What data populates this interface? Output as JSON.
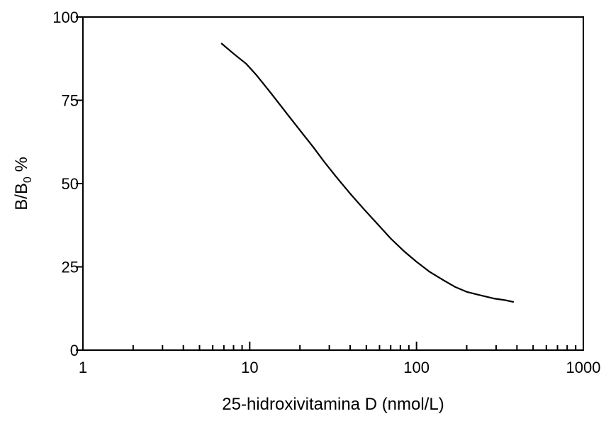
{
  "chart_data": {
    "type": "line",
    "title": "",
    "xlabel": "25-hidroxivitamina D (nmol/L)",
    "ylabel": {
      "base": "B/B",
      "subscript": "0",
      "suffix": " %"
    },
    "x_scale": "log",
    "xlim": [
      1,
      1000
    ],
    "ylim": [
      0,
      100
    ],
    "x_ticks": [
      1,
      10,
      100,
      1000
    ],
    "x_tick_labels": [
      "1",
      "10",
      "100",
      "1000"
    ],
    "y_ticks": [
      0,
      25,
      50,
      75,
      100
    ],
    "y_tick_labels": [
      "0",
      "25",
      "50",
      "75",
      "100"
    ],
    "grid": false,
    "legend": "none",
    "series": [
      {
        "color": "#000000",
        "x": [
          6.8,
          8,
          9.5,
          11,
          13,
          15,
          17,
          20,
          24,
          28,
          33,
          40,
          48,
          58,
          70,
          85,
          100,
          120,
          145,
          170,
          200,
          240,
          290,
          340,
          380
        ],
        "y": [
          92,
          89,
          86,
          82.5,
          78,
          74,
          70.5,
          66,
          61,
          56.5,
          52,
          47,
          42.5,
          38,
          33.5,
          29.5,
          26.5,
          23.5,
          21,
          19,
          17.5,
          16.5,
          15.5,
          15,
          14.5
        ]
      }
    ]
  }
}
